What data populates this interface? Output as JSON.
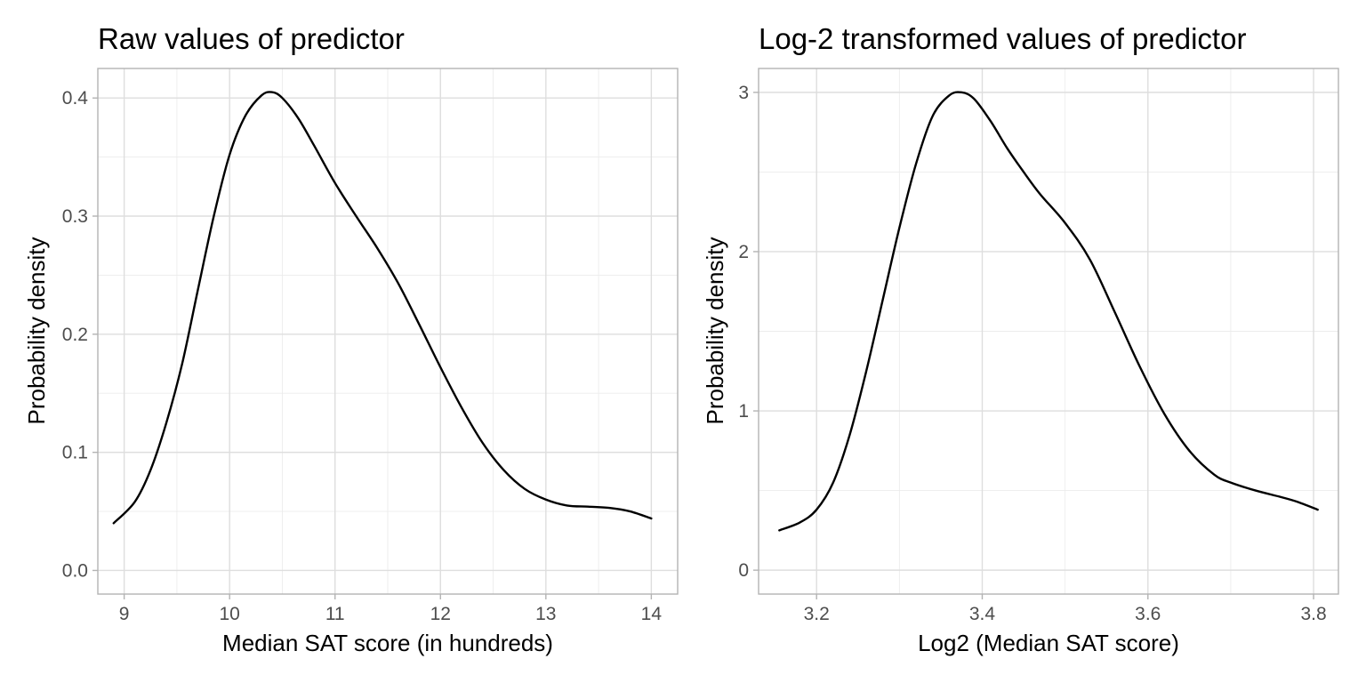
{
  "chart_data": [
    {
      "type": "line",
      "title": "Raw values of predictor",
      "xlabel": "Median SAT score (in hundreds)",
      "ylabel": "Probability density",
      "xlim": [
        8.75,
        14.25
      ],
      "ylim": [
        -0.02,
        0.425
      ],
      "x_ticks": [
        9,
        10,
        11,
        12,
        13,
        14
      ],
      "x_tick_labels": [
        "9",
        "10",
        "11",
        "12",
        "13",
        "14"
      ],
      "y_ticks": [
        0.0,
        0.1,
        0.2,
        0.3,
        0.4
      ],
      "y_tick_labels": [
        "0.0",
        "0.1",
        "0.2",
        "0.3",
        "0.4"
      ],
      "grid": true,
      "series": [
        {
          "x": [
            8.9,
            9.1,
            9.25,
            9.4,
            9.55,
            9.7,
            9.85,
            10.0,
            10.15,
            10.3,
            10.4,
            10.5,
            10.65,
            10.8,
            11.0,
            11.2,
            11.4,
            11.6,
            11.8,
            12.0,
            12.2,
            12.4,
            12.6,
            12.8,
            13.0,
            13.2,
            13.4,
            13.6,
            13.8,
            14.0
          ],
          "y": [
            0.04,
            0.058,
            0.085,
            0.125,
            0.175,
            0.238,
            0.3,
            0.352,
            0.385,
            0.402,
            0.405,
            0.4,
            0.383,
            0.36,
            0.328,
            0.3,
            0.273,
            0.243,
            0.208,
            0.172,
            0.138,
            0.108,
            0.085,
            0.069,
            0.06,
            0.055,
            0.054,
            0.053,
            0.05,
            0.044
          ]
        }
      ]
    },
    {
      "type": "line",
      "title": "Log-2 transformed values of predictor",
      "xlabel": "Log2 (Median SAT score)",
      "ylabel": "Probability density",
      "xlim": [
        3.13,
        3.83
      ],
      "ylim": [
        -0.15,
        3.15
      ],
      "x_ticks": [
        3.2,
        3.4,
        3.6,
        3.8
      ],
      "x_tick_labels": [
        "3.2",
        "3.4",
        "3.6",
        "3.8"
      ],
      "y_ticks": [
        0,
        1,
        2,
        3
      ],
      "y_tick_labels": [
        "0",
        "1",
        "2",
        "3"
      ],
      "grid": true,
      "series": [
        {
          "x": [
            3.155,
            3.18,
            3.2,
            3.22,
            3.24,
            3.26,
            3.28,
            3.3,
            3.32,
            3.34,
            3.36,
            3.375,
            3.39,
            3.41,
            3.43,
            3.45,
            3.47,
            3.5,
            3.53,
            3.56,
            3.59,
            3.62,
            3.65,
            3.68,
            3.7,
            3.73,
            3.76,
            3.78,
            3.805
          ],
          "y": [
            0.25,
            0.3,
            0.38,
            0.55,
            0.85,
            1.25,
            1.7,
            2.15,
            2.55,
            2.85,
            2.98,
            3.0,
            2.96,
            2.82,
            2.65,
            2.5,
            2.36,
            2.18,
            1.95,
            1.62,
            1.28,
            0.98,
            0.75,
            0.6,
            0.55,
            0.5,
            0.46,
            0.43,
            0.38
          ]
        }
      ]
    }
  ]
}
